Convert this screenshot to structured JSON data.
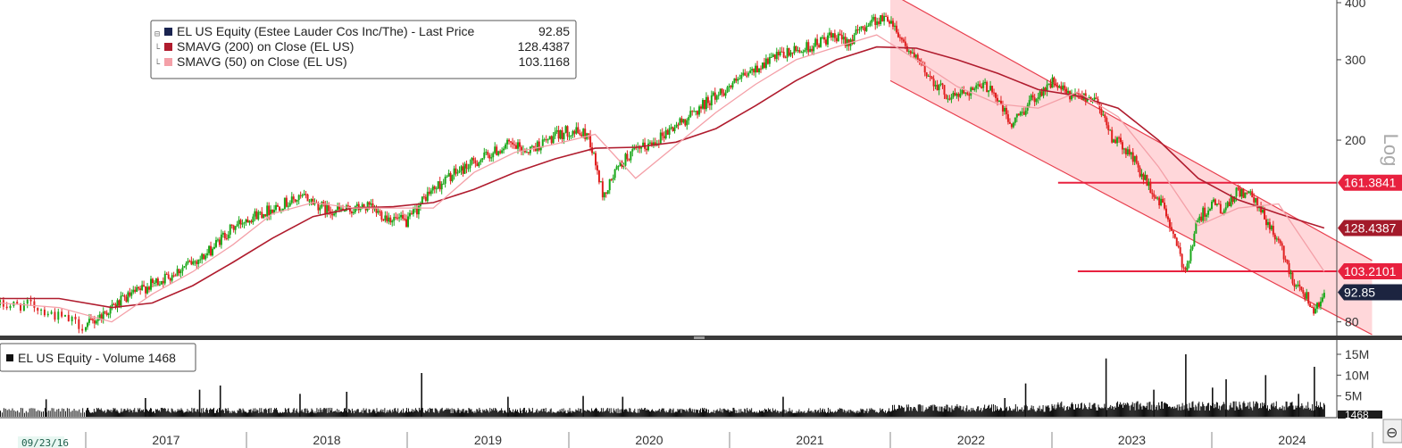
{
  "chart_data": [
    {
      "type": "line",
      "panel": "price",
      "scale": "log",
      "scale_label": "Log",
      "ylim": [
        75,
        400
      ],
      "y_ticks": [
        80,
        200,
        300,
        400
      ],
      "legend": {
        "placement": "top-left",
        "entries": [
          {
            "label": "EL US Equity (Estee Lauder Cos Inc/The) - Last Price",
            "value": "92.85",
            "color": "#1a2450"
          },
          {
            "label": "SMAVG (200)  on Close (EL US)",
            "value": "128.4387",
            "color": "#b01c2e"
          },
          {
            "label": "SMAVG (50)  on Close (EL US)",
            "value": "103.1168",
            "color": "#f4a0a8"
          }
        ]
      },
      "axis_tags": [
        {
          "text": "161.3841",
          "value": 161.3841,
          "color": "#e8213f",
          "text_color": "#ffffff"
        },
        {
          "text": "128.4387",
          "value": 128.4387,
          "color": "#a31a2a",
          "text_color": "#ffffff"
        },
        {
          "text": "103.2101",
          "value": 103.2101,
          "color": "#e8213f",
          "text_color": "#ffffff"
        },
        {
          "text": "92.85",
          "value": 92.85,
          "color": "#1c2440",
          "text_color": "#ffffff"
        }
      ],
      "horizontal_lines": [
        {
          "from": "2023-01-15",
          "to": "2024-12-31",
          "value": 161.3841,
          "color": "#e8213f"
        },
        {
          "from": "2023-03-01",
          "to": "2024-12-31",
          "value": 103.2101,
          "color": "#e8213f"
        }
      ],
      "trend_channel": {
        "upper": [
          [
            "2022-01-01",
            420
          ],
          [
            "2024-12-31",
            109
          ]
        ],
        "lower": [
          [
            "2022-01-01",
            270
          ],
          [
            "2024-12-31",
            75
          ]
        ],
        "fill": "#ffd7da",
        "line_color": "#e8404f"
      },
      "series": [
        {
          "name": "EL US Equity",
          "style": "candles",
          "up_color": "#1aa81a",
          "down_color": "#e02020",
          "points": [
            [
              "2016-09-23",
              87
            ],
            [
              "2016-11-01",
              87
            ],
            [
              "2016-12-01",
              82
            ],
            [
              "2017-01-01",
              78
            ],
            [
              "2017-02-15",
              84
            ],
            [
              "2017-04-01",
              90
            ],
            [
              "2017-05-15",
              95
            ],
            [
              "2017-07-01",
              100
            ],
            [
              "2017-08-15",
              106
            ],
            [
              "2017-10-01",
              112
            ],
            [
              "2017-11-15",
              125
            ],
            [
              "2018-01-01",
              135
            ],
            [
              "2018-02-15",
              140
            ],
            [
              "2018-04-01",
              146
            ],
            [
              "2018-05-15",
              150
            ],
            [
              "2018-07-01",
              141
            ],
            [
              "2018-08-15",
              140
            ],
            [
              "2018-10-01",
              143
            ],
            [
              "2018-11-15",
              136
            ],
            [
              "2019-01-01",
              132
            ],
            [
              "2019-02-15",
              152
            ],
            [
              "2019-04-01",
              165
            ],
            [
              "2019-05-15",
              175
            ],
            [
              "2019-07-01",
              185
            ],
            [
              "2019-08-15",
              195
            ],
            [
              "2019-10-01",
              190
            ],
            [
              "2019-11-15",
              200
            ],
            [
              "2020-01-01",
              210
            ],
            [
              "2020-02-15",
              205
            ],
            [
              "2020-03-20",
              150
            ],
            [
              "2020-04-15",
              170
            ],
            [
              "2020-05-15",
              185
            ],
            [
              "2020-07-01",
              195
            ],
            [
              "2020-08-15",
              210
            ],
            [
              "2020-10-01",
              225
            ],
            [
              "2020-11-15",
              245
            ],
            [
              "2021-01-01",
              262
            ],
            [
              "2021-02-15",
              280
            ],
            [
              "2021-04-01",
              300
            ],
            [
              "2021-05-15",
              310
            ],
            [
              "2021-07-01",
              320
            ],
            [
              "2021-08-15",
              335
            ],
            [
              "2021-10-01",
              330
            ],
            [
              "2021-11-15",
              365
            ],
            [
              "2021-12-31",
              370
            ],
            [
              "2022-02-15",
              310
            ],
            [
              "2022-04-01",
              275
            ],
            [
              "2022-05-15",
              248
            ],
            [
              "2022-07-01",
              258
            ],
            [
              "2022-08-15",
              263
            ],
            [
              "2022-10-01",
              215
            ],
            [
              "2022-11-15",
              245
            ],
            [
              "2023-01-01",
              268
            ],
            [
              "2023-02-15",
              248
            ],
            [
              "2023-03-15",
              250
            ],
            [
              "2023-04-15",
              245
            ],
            [
              "2023-05-15",
              205
            ],
            [
              "2023-07-01",
              185
            ],
            [
              "2023-08-15",
              155
            ],
            [
              "2023-09-15",
              142
            ],
            [
              "2023-10-15",
              115
            ],
            [
              "2023-11-01",
              103
            ],
            [
              "2023-12-01",
              135
            ],
            [
              "2024-01-01",
              145
            ],
            [
              "2024-02-01",
              140
            ],
            [
              "2024-03-01",
              155
            ],
            [
              "2024-04-01",
              150
            ],
            [
              "2024-05-01",
              135
            ],
            [
              "2024-06-01",
              120
            ],
            [
              "2024-07-01",
              100
            ],
            [
              "2024-08-01",
              92
            ],
            [
              "2024-08-20",
              85
            ],
            [
              "2024-09-13",
              92.85
            ]
          ]
        },
        {
          "name": "SMAVG (200)",
          "color": "#b01c2e",
          "points": [
            [
              "2016-09-23",
              90
            ],
            [
              "2016-12-01",
              90
            ],
            [
              "2017-03-01",
              86
            ],
            [
              "2017-06-01",
              88
            ],
            [
              "2017-09-01",
              96
            ],
            [
              "2017-12-01",
              108
            ],
            [
              "2018-03-01",
              122
            ],
            [
              "2018-06-01",
              136
            ],
            [
              "2018-09-01",
              142
            ],
            [
              "2018-12-01",
              143
            ],
            [
              "2019-03-01",
              146
            ],
            [
              "2019-06-01",
              156
            ],
            [
              "2019-09-01",
              170
            ],
            [
              "2019-12-01",
              182
            ],
            [
              "2020-03-01",
              192
            ],
            [
              "2020-06-01",
              193
            ],
            [
              "2020-09-01",
              198
            ],
            [
              "2020-12-01",
              212
            ],
            [
              "2021-03-01",
              238
            ],
            [
              "2021-06-01",
              270
            ],
            [
              "2021-09-01",
              300
            ],
            [
              "2021-12-01",
              320
            ],
            [
              "2022-03-01",
              318
            ],
            [
              "2022-06-01",
              300
            ],
            [
              "2022-09-01",
              280
            ],
            [
              "2022-12-01",
              258
            ],
            [
              "2023-03-01",
              250
            ],
            [
              "2023-06-01",
              235
            ],
            [
              "2023-09-01",
              200
            ],
            [
              "2023-12-01",
              165
            ],
            [
              "2024-03-01",
              148
            ],
            [
              "2024-06-01",
              138
            ],
            [
              "2024-09-13",
              128.4387
            ]
          ]
        },
        {
          "name": "SMAVG (50)",
          "color": "#f4a0a8",
          "points": [
            [
              "2016-09-23",
              88
            ],
            [
              "2016-12-01",
              86
            ],
            [
              "2017-03-01",
              80
            ],
            [
              "2017-06-01",
              92
            ],
            [
              "2017-09-01",
              103
            ],
            [
              "2017-12-01",
              118
            ],
            [
              "2018-03-01",
              138
            ],
            [
              "2018-06-01",
              146
            ],
            [
              "2018-09-01",
              142
            ],
            [
              "2018-12-01",
              142
            ],
            [
              "2019-03-01",
              142
            ],
            [
              "2019-06-01",
              170
            ],
            [
              "2019-09-01",
              188
            ],
            [
              "2019-12-01",
              196
            ],
            [
              "2020-03-01",
              206
            ],
            [
              "2020-06-01",
              165
            ],
            [
              "2020-09-01",
              195
            ],
            [
              "2020-12-01",
              230
            ],
            [
              "2021-03-01",
              265
            ],
            [
              "2021-06-01",
              300
            ],
            [
              "2021-09-01",
              320
            ],
            [
              "2021-12-01",
              340
            ],
            [
              "2022-03-01",
              300
            ],
            [
              "2022-06-01",
              262
            ],
            [
              "2022-09-01",
              240
            ],
            [
              "2022-12-01",
              235
            ],
            [
              "2023-03-01",
              255
            ],
            [
              "2023-06-01",
              225
            ],
            [
              "2023-09-01",
              175
            ],
            [
              "2023-12-01",
              130
            ],
            [
              "2024-03-01",
              142
            ],
            [
              "2024-06-01",
              145
            ],
            [
              "2024-09-13",
              103.1168
            ]
          ]
        }
      ]
    },
    {
      "type": "bar",
      "panel": "volume",
      "legend": {
        "placement": "top-left",
        "label": "EL US Equity - Volume 1468"
      },
      "y_ticks": [
        {
          "value": 5000000,
          "text": "5M"
        },
        {
          "value": 10000000,
          "text": "10M"
        },
        {
          "value": 15000000,
          "text": "15M"
        }
      ],
      "ylim": [
        0,
        18000000
      ],
      "last_tag": "1468",
      "bar_color": "#111111",
      "spikes": [
        [
          "2016-11-15",
          4200000
        ],
        [
          "2017-05-15",
          4500000
        ],
        [
          "2017-09-15",
          6500000
        ],
        [
          "2017-11-01",
          7500000
        ],
        [
          "2018-05-01",
          5500000
        ],
        [
          "2018-08-15",
          6000000
        ],
        [
          "2019-02-01",
          10500000
        ],
        [
          "2019-08-15",
          4800000
        ],
        [
          "2020-02-01",
          5000000
        ],
        [
          "2020-05-01",
          4800000
        ],
        [
          "2021-05-01",
          4800000
        ],
        [
          "2022-09-15",
          4500000
        ],
        [
          "2022-11-01",
          8000000
        ],
        [
          "2023-05-03",
          14000000
        ],
        [
          "2023-08-20",
          6500000
        ],
        [
          "2023-11-01",
          15000000
        ],
        [
          "2024-01-01",
          7000000
        ],
        [
          "2024-02-01",
          9000000
        ],
        [
          "2024-05-01",
          10000000
        ],
        [
          "2024-07-15",
          5500000
        ],
        [
          "2024-08-20",
          12000000
        ]
      ]
    }
  ],
  "time_axis": {
    "start": "2016-09-23",
    "end": "2024-12-31",
    "start_badge": "09/23/16",
    "years": [
      "2017",
      "2018",
      "2019",
      "2020",
      "2021",
      "2022",
      "2023",
      "2024"
    ]
  }
}
